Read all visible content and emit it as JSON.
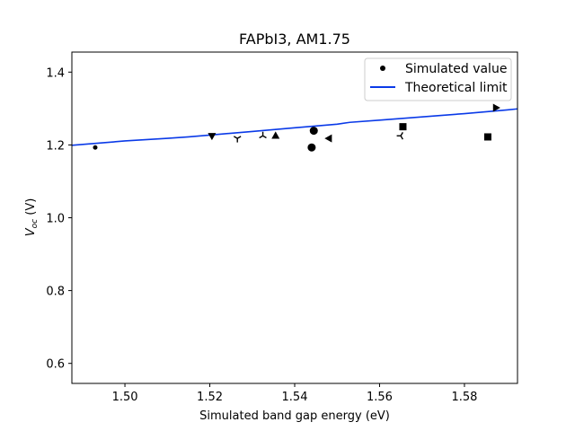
{
  "chart_data": {
    "type": "scatter",
    "title": "FAPbI3, AM1.75",
    "xlabel": "Simulated band gap energy (eV)",
    "ylabel_main": "V",
    "ylabel_sub": "oc",
    "ylabel_unit": " (V)",
    "xlim": [
      1.4875,
      1.5925
    ],
    "ylim": [
      0.545,
      1.455
    ],
    "xticks": [
      1.5,
      1.52,
      1.54,
      1.56,
      1.58
    ],
    "xtick_labels": [
      "1.50",
      "1.52",
      "1.54",
      "1.56",
      "1.58"
    ],
    "yticks": [
      0.6,
      0.8,
      1.0,
      1.2,
      1.4
    ],
    "ytick_labels": [
      "0.6",
      "0.8",
      "1.0",
      "1.2",
      "1.4"
    ],
    "grid": false,
    "legend_position": "top-right",
    "series": [
      {
        "name": "Simulated value",
        "color": "#000000",
        "points": [
          {
            "x": 1.493,
            "y": 1.193,
            "marker": "point"
          },
          {
            "x": 1.5205,
            "y": 1.224,
            "marker": "triangle-down"
          },
          {
            "x": 1.5265,
            "y": 1.218,
            "marker": "tri-down"
          },
          {
            "x": 1.5325,
            "y": 1.225,
            "marker": "tri-up"
          },
          {
            "x": 1.5355,
            "y": 1.226,
            "marker": "triangle-up"
          },
          {
            "x": 1.544,
            "y": 1.193,
            "marker": "circle"
          },
          {
            "x": 1.5445,
            "y": 1.239,
            "marker": "circle"
          },
          {
            "x": 1.548,
            "y": 1.218,
            "marker": "triangle-left"
          },
          {
            "x": 1.565,
            "y": 1.225,
            "marker": "tri-left"
          },
          {
            "x": 1.5655,
            "y": 1.25,
            "marker": "square"
          },
          {
            "x": 1.5855,
            "y": 1.222,
            "marker": "square"
          },
          {
            "x": 1.5875,
            "y": 1.302,
            "marker": "triangle-right"
          }
        ]
      },
      {
        "name": "Theoretical limit",
        "color": "#0a3ae8",
        "x": [
          1.4875,
          1.495,
          1.5,
          1.51,
          1.515,
          1.52,
          1.53,
          1.54,
          1.55,
          1.553,
          1.56,
          1.57,
          1.58,
          1.59,
          1.5925
        ],
        "y": [
          1.199,
          1.206,
          1.211,
          1.218,
          1.222,
          1.227,
          1.237,
          1.247,
          1.257,
          1.262,
          1.268,
          1.277,
          1.286,
          1.296,
          1.299
        ]
      }
    ]
  }
}
